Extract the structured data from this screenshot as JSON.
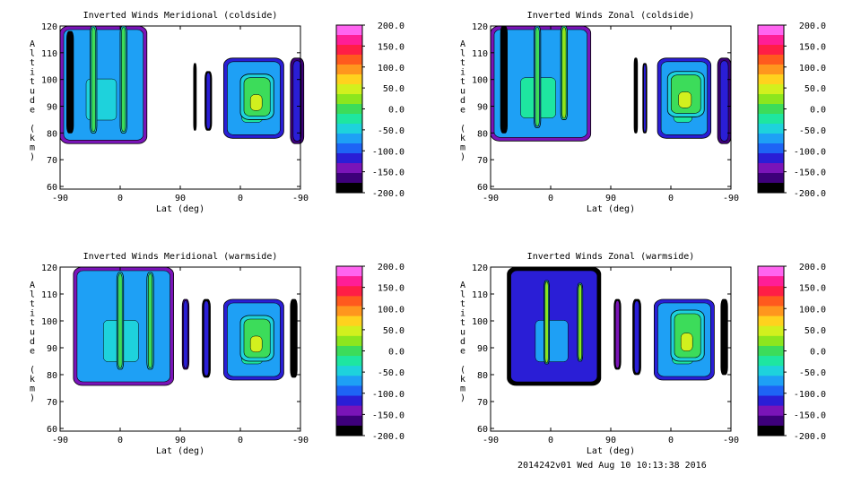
{
  "chart_data": [
    {
      "type": "heatmap",
      "title": "Inverted Winds Meridional (coldside)",
      "xlabel": "Lat (deg)",
      "ylabel": "Altitude (km)",
      "x_ticks": [
        "-90",
        "0",
        "90",
        "0",
        "-90"
      ],
      "y_ticks": [
        "60",
        "70",
        "80",
        "90",
        "100",
        "110",
        "120"
      ],
      "ylim": [
        59,
        120
      ],
      "colorbar_ticks": [
        "200.0",
        "150.0",
        "100.0",
        "50.0",
        "0.0",
        "-50.0",
        "-100.0",
        "-150.0",
        "-200.0"
      ],
      "colorbar_range": [
        -200,
        200
      ],
      "regions": [
        {
          "x_range": [
            -90,
            40
          ],
          "alt_range": [
            76,
            120
          ],
          "level": -80
        },
        {
          "x_range": [
            -80,
            -70
          ],
          "alt_range": [
            80,
            118
          ],
          "level": -180
        },
        {
          "x_range": [
            -45,
            -35
          ],
          "alt_range": [
            80,
            120
          ],
          "level": 10
        },
        {
          "x_range": [
            0,
            10
          ],
          "alt_range": [
            80,
            120
          ],
          "level": 10
        },
        {
          "x_range": [
            110,
            114
          ],
          "alt_range": [
            81,
            106
          ],
          "level": -190
        },
        {
          "x_range": [
            127,
            137
          ],
          "alt_range": [
            81,
            103
          ],
          "level": -120
        },
        {
          "x_range": [
            155,
            245
          ],
          "alt_range": [
            78,
            108
          ],
          "level": -60
        },
        {
          "x_range": [
            180,
            230
          ],
          "alt_range": [
            85,
            102
          ],
          "level": 10
        },
        {
          "x_range": [
            255,
            275
          ],
          "alt_range": [
            76,
            108
          ],
          "level": -110
        }
      ]
    },
    {
      "type": "heatmap",
      "title": "Inverted Winds Zonal (coldside)",
      "xlabel": "Lat (deg)",
      "ylabel": "Altitude (km)",
      "x_ticks": [
        "-90",
        "0",
        "90",
        "0",
        "-90"
      ],
      "y_ticks": [
        "60",
        "70",
        "80",
        "90",
        "100",
        "110",
        "120"
      ],
      "ylim": [
        59,
        120
      ],
      "colorbar_ticks": [
        "200.0",
        "150.0",
        "100.0",
        "50.0",
        "0.0",
        "-50.0",
        "-100.0",
        "-150.0",
        "-200.0"
      ],
      "colorbar_range": [
        -200,
        200
      ],
      "regions": [
        {
          "x_range": [
            -90,
            60
          ],
          "alt_range": [
            77,
            120
          ],
          "level": -70
        },
        {
          "x_range": [
            -75,
            -65
          ],
          "alt_range": [
            80,
            120
          ],
          "level": -180
        },
        {
          "x_range": [
            -25,
            -15
          ],
          "alt_range": [
            82,
            120
          ],
          "level": -10
        },
        {
          "x_range": [
            15,
            25
          ],
          "alt_range": [
            85,
            120
          ],
          "level": 30
        },
        {
          "x_range": [
            125,
            130
          ],
          "alt_range": [
            80,
            108
          ],
          "level": -190
        },
        {
          "x_range": [
            138,
            144
          ],
          "alt_range": [
            80,
            106
          ],
          "level": -120
        },
        {
          "x_range": [
            160,
            240
          ],
          "alt_range": [
            78,
            108
          ],
          "level": -60
        },
        {
          "x_range": [
            175,
            230
          ],
          "alt_range": [
            86,
            103
          ],
          "level": 10
        },
        {
          "x_range": [
            250,
            270
          ],
          "alt_range": [
            76,
            108
          ],
          "level": -110
        }
      ]
    },
    {
      "type": "heatmap",
      "title": "Inverted Winds Meridional (warmside)",
      "xlabel": "Lat (deg)",
      "ylabel": "Altitude (km)",
      "x_ticks": [
        "-90",
        "0",
        "90",
        "0",
        "-90"
      ],
      "y_ticks": [
        "60",
        "70",
        "80",
        "90",
        "100",
        "110",
        "120"
      ],
      "ylim": [
        59,
        120
      ],
      "colorbar_ticks": [
        "200.0",
        "150.0",
        "100.0",
        "50.0",
        "0.0",
        "-50.0",
        "-100.0",
        "-150.0",
        "-200.0"
      ],
      "colorbar_range": [
        -200,
        200
      ],
      "regions": [
        {
          "x_range": [
            -70,
            80
          ],
          "alt_range": [
            76,
            120
          ],
          "level": -80
        },
        {
          "x_range": [
            -5,
            5
          ],
          "alt_range": [
            82,
            118
          ],
          "level": 10
        },
        {
          "x_range": [
            40,
            50
          ],
          "alt_range": [
            82,
            118
          ],
          "level": 10
        },
        {
          "x_range": [
            93,
            103
          ],
          "alt_range": [
            82,
            108
          ],
          "level": -110
        },
        {
          "x_range": [
            123,
            135
          ],
          "alt_range": [
            79,
            108
          ],
          "level": -120
        },
        {
          "x_range": [
            155,
            245
          ],
          "alt_range": [
            78,
            108
          ],
          "level": -60
        },
        {
          "x_range": [
            180,
            230
          ],
          "alt_range": [
            85,
            102
          ],
          "level": 10
        },
        {
          "x_range": [
            255,
            265
          ],
          "alt_range": [
            79,
            108
          ],
          "level": -180
        }
      ]
    },
    {
      "type": "heatmap",
      "title": "Inverted Winds Zonal (warmside)",
      "xlabel": "Lat (deg)",
      "ylabel": "Altitude (km)",
      "x_ticks": [
        "-90",
        "0",
        "90",
        "0",
        "-90"
      ],
      "y_ticks": [
        "60",
        "70",
        "80",
        "90",
        "100",
        "110",
        "120"
      ],
      "ylim": [
        59,
        120
      ],
      "colorbar_ticks": [
        "200.0",
        "150.0",
        "100.0",
        "50.0",
        "0.0",
        "-50.0",
        "-100.0",
        "-150.0",
        "-200.0"
      ],
      "colorbar_range": [
        -200,
        200
      ],
      "regions": [
        {
          "x_range": [
            -65,
            75
          ],
          "alt_range": [
            76,
            120
          ],
          "level": -120
        },
        {
          "x_range": [
            -10,
            -2
          ],
          "alt_range": [
            84,
            115
          ],
          "level": 20
        },
        {
          "x_range": [
            40,
            48
          ],
          "alt_range": [
            85,
            114
          ],
          "level": 20
        },
        {
          "x_range": [
            95,
            105
          ],
          "alt_range": [
            82,
            108
          ],
          "level": -140
        },
        {
          "x_range": [
            123,
            135
          ],
          "alt_range": [
            80,
            108
          ],
          "level": -120
        },
        {
          "x_range": [
            155,
            245
          ],
          "alt_range": [
            78,
            108
          ],
          "level": -60
        },
        {
          "x_range": [
            180,
            230
          ],
          "alt_range": [
            85,
            104
          ],
          "level": 10
        },
        {
          "x_range": [
            255,
            265
          ],
          "alt_range": [
            80,
            108
          ],
          "level": -180
        }
      ]
    }
  ],
  "colormap": [
    "#000000",
    "#3d007a",
    "#7a14b8",
    "#2a1ed6",
    "#1e64f5",
    "#1ea0f5",
    "#1ed2dc",
    "#1ee6a0",
    "#3cdc5a",
    "#8ce61e",
    "#d2f01e",
    "#ffd21e",
    "#ff961e",
    "#ff5a1e",
    "#ff1e46",
    "#ff1e96",
    "#ff64f0"
  ],
  "footer": "2014242v01 Wed Aug 10 10:13:38 2016"
}
